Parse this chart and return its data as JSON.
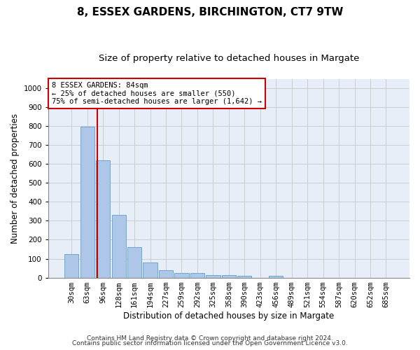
{
  "title1": "8, ESSEX GARDENS, BIRCHINGTON, CT7 9TW",
  "title2": "Size of property relative to detached houses in Margate",
  "xlabel": "Distribution of detached houses by size in Margate",
  "ylabel": "Number of detached properties",
  "categories": [
    "30sqm",
    "63sqm",
    "96sqm",
    "128sqm",
    "161sqm",
    "194sqm",
    "227sqm",
    "259sqm",
    "292sqm",
    "325sqm",
    "358sqm",
    "390sqm",
    "423sqm",
    "456sqm",
    "489sqm",
    "521sqm",
    "554sqm",
    "587sqm",
    "620sqm",
    "652sqm",
    "685sqm"
  ],
  "values": [
    125,
    795,
    620,
    330,
    162,
    78,
    40,
    25,
    23,
    15,
    12,
    8,
    0,
    8,
    0,
    0,
    0,
    0,
    0,
    0,
    0
  ],
  "bar_color": "#aec6e8",
  "bar_edge_color": "#5a9fd4",
  "annotation_text": "8 ESSEX GARDENS: 84sqm\n← 25% of detached houses are smaller (550)\n75% of semi-detached houses are larger (1,642) →",
  "annotation_box_color": "#ffffff",
  "annotation_border_color": "#cc0000",
  "ylim": [
    0,
    1050
  ],
  "yticks": [
    0,
    100,
    200,
    300,
    400,
    500,
    600,
    700,
    800,
    900,
    1000
  ],
  "grid_color": "#cccccc",
  "bg_color": "#e8eef8",
  "footer1": "Contains HM Land Registry data © Crown copyright and database right 2024.",
  "footer2": "Contains public sector information licensed under the Open Government Licence v3.0.",
  "title1_fontsize": 11,
  "title2_fontsize": 9.5,
  "tick_fontsize": 7.5,
  "ylabel_fontsize": 8.5,
  "xlabel_fontsize": 8.5,
  "footer_fontsize": 6.5,
  "annot_fontsize": 7.5
}
